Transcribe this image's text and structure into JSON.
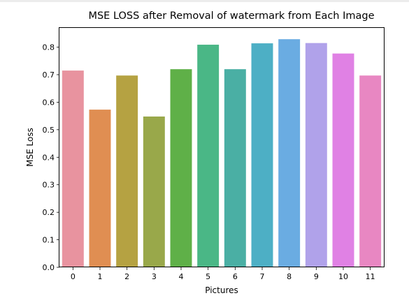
{
  "chart_data": {
    "type": "bar",
    "title": "MSE LOSS after Removal of watermark from Each Image",
    "xlabel": "Pictures",
    "ylabel": "MSE Loss",
    "categories": [
      "0",
      "1",
      "2",
      "3",
      "4",
      "5",
      "6",
      "7",
      "8",
      "9",
      "10",
      "11"
    ],
    "values": [
      0.715,
      0.573,
      0.697,
      0.548,
      0.72,
      0.809,
      0.72,
      0.814,
      0.829,
      0.815,
      0.777,
      0.697
    ],
    "colors": [
      "#e8939f",
      "#e08e52",
      "#b5a242",
      "#99a84a",
      "#5fb048",
      "#4ab786",
      "#4aafa4",
      "#4dafc5",
      "#6aace2",
      "#b0a2ea",
      "#e081e4",
      "#e887c2"
    ],
    "yticks": [
      "0.0",
      "0.1",
      "0.2",
      "0.3",
      "0.4",
      "0.5",
      "0.6",
      "0.7",
      "0.8"
    ],
    "ylim": [
      0,
      0.87
    ],
    "grid": false,
    "legend": false
  }
}
